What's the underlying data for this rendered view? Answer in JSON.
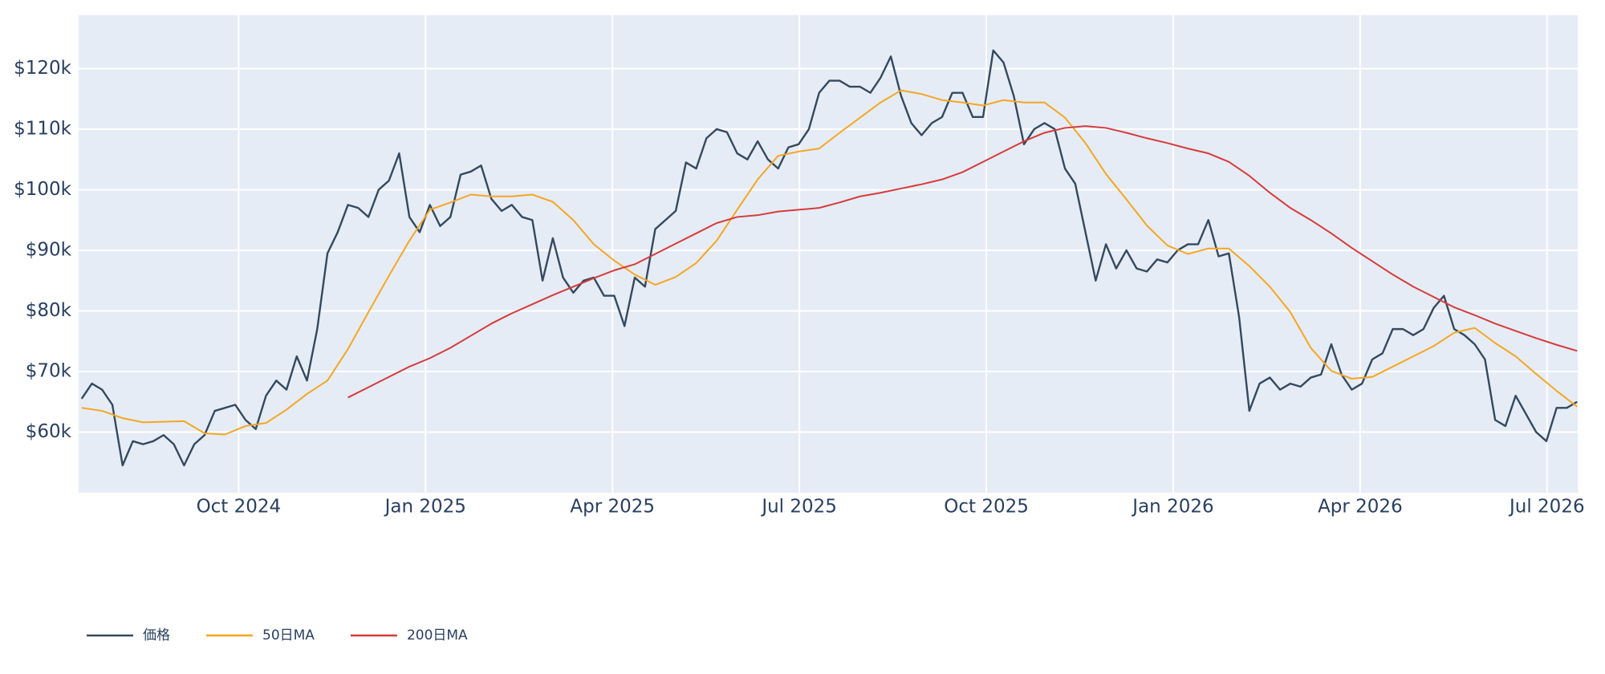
{
  "chart_data": {
    "type": "line",
    "xlim": [
      2024.536,
      2026.541
    ],
    "ylim": [
      50000,
      128800
    ],
    "grid": true,
    "legend": "bottom-left",
    "background": "#e5ecf6",
    "xticks": [
      {
        "value": 2024.75,
        "label": "Oct 2024"
      },
      {
        "value": 2025.0,
        "label": "Jan 2025"
      },
      {
        "value": 2025.25,
        "label": "Apr 2025"
      },
      {
        "value": 2025.5,
        "label": "Jul 2025"
      },
      {
        "value": 2025.75,
        "label": "Oct 2025"
      },
      {
        "value": 2026.0,
        "label": "Jan 2026"
      },
      {
        "value": 2026.25,
        "label": "Apr 2026"
      },
      {
        "value": 2026.5,
        "label": "Jul 2026"
      }
    ],
    "yticks": [
      {
        "value": 60000,
        "label": "$60k"
      },
      {
        "value": 70000,
        "label": "$70k"
      },
      {
        "value": 80000,
        "label": "$80k"
      },
      {
        "value": 90000,
        "label": "$90k"
      },
      {
        "value": 100000,
        "label": "$100k"
      },
      {
        "value": 110000,
        "label": "$110k"
      },
      {
        "value": 120000,
        "label": "$120k"
      }
    ],
    "series": [
      {
        "name": "価格",
        "color": "#34495e",
        "x": [
          2024.54,
          2024.5537,
          2024.5674,
          2024.5811,
          2024.5948,
          2024.6085,
          2024.6222,
          2024.6359,
          2024.6496,
          2024.6633,
          2024.677,
          2024.6907,
          2024.7044,
          2024.7181,
          2024.7318,
          2024.7455,
          2024.7592,
          2024.7729,
          2024.7866,
          2024.8003,
          2024.814,
          2024.8277,
          2024.8414,
          2024.8551,
          2024.8688,
          2024.8825,
          2024.8962,
          2024.9099,
          2024.9236,
          2024.9373,
          2024.951,
          2024.9647,
          2024.9784,
          2024.9921,
          2025.0058,
          2025.0195,
          2025.0332,
          2025.0469,
          2025.0606,
          2025.0743,
          2025.088,
          2025.1017,
          2025.1154,
          2025.1291,
          2025.1428,
          2025.1565,
          2025.1702,
          2025.1839,
          2025.1976,
          2025.2113,
          2025.225,
          2025.2387,
          2025.2524,
          2025.2661,
          2025.2798,
          2025.2935,
          2025.3072,
          2025.3209,
          2025.3346,
          2025.3483,
          2025.362,
          2025.3757,
          2025.3894,
          2025.4031,
          2025.4168,
          2025.4305,
          2025.4442,
          2025.4579,
          2025.4716,
          2025.4853,
          2025.499,
          2025.5127,
          2025.5264,
          2025.5401,
          2025.5538,
          2025.5675,
          2025.5812,
          2025.5949,
          2025.6086,
          2025.6223,
          2025.636,
          2025.6497,
          2025.6634,
          2025.6771,
          2025.6908,
          2025.7045,
          2025.7182,
          2025.7319,
          2025.7456,
          2025.7593,
          2025.773,
          2025.7867,
          2025.8004,
          2025.8141,
          2025.8278,
          2025.8415,
          2025.8552,
          2025.8689,
          2025.8826,
          2025.8963,
          2025.91,
          2025.9237,
          2025.9374,
          2025.9511,
          2025.9648,
          2025.9785,
          2025.9922,
          2026.0059,
          2026.0196,
          2026.0333,
          2026.047,
          2026.0607,
          2026.0744,
          2026.0881,
          2026.1018,
          2026.1155,
          2026.1292,
          2026.1429,
          2026.1566,
          2026.1703,
          2026.184,
          2026.1977,
          2026.2114,
          2026.2251,
          2026.2388,
          2026.2525,
          2026.2662,
          2026.2799,
          2026.2936,
          2026.3073,
          2026.321,
          2026.3347,
          2026.3484,
          2026.3621,
          2026.3758,
          2026.3895,
          2026.4032,
          2026.4169,
          2026.4306,
          2026.4443,
          2026.458,
          2026.4717,
          2026.4854,
          2026.4991,
          2026.5128,
          2026.5265,
          2026.5402
        ],
        "values": [
          65500,
          68000,
          67000,
          64500,
          54500,
          58500,
          58000,
          58500,
          59500,
          58000,
          54500,
          58000,
          59500,
          63500,
          64000,
          64500,
          62000,
          60500,
          66000,
          68500,
          67000,
          72500,
          68500,
          77000,
          89500,
          93000,
          97500,
          97000,
          95500,
          100000,
          101500,
          106000,
          95500,
          93000,
          97500,
          94000,
          95500,
          102500,
          103000,
          104000,
          98500,
          96500,
          97500,
          95500,
          95000,
          85000,
          92000,
          85500,
          83000,
          85000,
          85500,
          82500,
          82500,
          77500,
          85500,
          84000,
          93500,
          95000,
          96500,
          104500,
          103500,
          108500,
          110000,
          109500,
          106000,
          105000,
          108000,
          105000,
          103500,
          107000,
          107500,
          110000,
          116000,
          118000,
          118000,
          117000,
          117000,
          116000,
          118500,
          122000,
          115500,
          111000,
          109000,
          111000,
          112000,
          116000,
          116000,
          112000,
          112000,
          123000,
          121000,
          115500,
          107500,
          110000,
          111000,
          110000,
          103500,
          101000,
          93000,
          85000,
          91000,
          87000,
          90000,
          87000,
          86500,
          88500,
          88000,
          90000,
          91000,
          91000,
          95000,
          89000,
          89500,
          79000,
          63500,
          68000,
          69000,
          67000,
          68000,
          67500,
          69000,
          69500,
          74500,
          69500,
          67000,
          68000,
          72000,
          73000,
          77000,
          77000,
          76000,
          77000,
          80500,
          82500,
          77000,
          76000,
          74500,
          72000,
          62000,
          61000,
          66000,
          63000,
          60000,
          58500,
          64000,
          64000,
          65000
        ]
      },
      {
        "name": "50日MA",
        "color": "#f5a623",
        "x": [
          2024.54,
          2024.5674,
          2024.5948,
          2024.6222,
          2024.6496,
          2024.677,
          2024.7044,
          2024.7318,
          2024.7592,
          2024.7866,
          2024.814,
          2024.8414,
          2024.8688,
          2024.8962,
          2024.9236,
          2024.951,
          2024.9784,
          2025.0058,
          2025.0332,
          2025.0606,
          2025.088,
          2025.1154,
          2025.1428,
          2025.1702,
          2025.1976,
          2025.225,
          2025.2524,
          2025.2798,
          2025.3072,
          2025.3346,
          2025.362,
          2025.3894,
          2025.4168,
          2025.4442,
          2025.4716,
          2025.499,
          2025.5264,
          2025.5538,
          2025.5812,
          2025.6086,
          2025.636,
          2025.6634,
          2025.6908,
          2025.7182,
          2025.7456,
          2025.773,
          2025.8004,
          2025.8278,
          2025.8552,
          2025.8826,
          2025.91,
          2025.9374,
          2025.9648,
          2025.9922,
          2026.0196,
          2026.047,
          2026.0744,
          2026.1018,
          2026.1292,
          2026.1566,
          2026.184,
          2026.2114,
          2026.2388,
          2026.2662,
          2026.2936,
          2026.321,
          2026.3484,
          2026.3758,
          2026.4032,
          2026.4306,
          2026.458,
          2026.4854,
          2026.5128,
          2026.5402
        ],
        "values": [
          64000,
          63500,
          62300,
          61600,
          61700,
          61800,
          59800,
          59600,
          61000,
          61500,
          63700,
          66300,
          68500,
          73700,
          79800,
          85800,
          91600,
          96700,
          97900,
          99200,
          98900,
          98900,
          99200,
          98000,
          95000,
          91000,
          88300,
          86000,
          84300,
          85600,
          87900,
          91600,
          96700,
          101700,
          105600,
          106300,
          106800,
          109400,
          111900,
          114400,
          116400,
          115800,
          114800,
          114400,
          113900,
          114800,
          114400,
          114400,
          111900,
          107700,
          102600,
          98400,
          94100,
          90800,
          89400,
          90300,
          90300,
          87400,
          84000,
          79800,
          73900,
          70100,
          68800,
          69100,
          70800,
          72500,
          74200,
          76400,
          77200,
          74700,
          72500,
          69600,
          66800,
          64200
        ]
      },
      {
        "name": "200日MA",
        "color": "#d63b3b",
        "x": [
          2024.8962,
          2024.9236,
          2024.951,
          2024.9784,
          2025.0058,
          2025.0332,
          2025.0606,
          2025.088,
          2025.1154,
          2025.1428,
          2025.1702,
          2025.1976,
          2025.225,
          2025.2524,
          2025.2798,
          2025.3072,
          2025.3346,
          2025.362,
          2025.3894,
          2025.4168,
          2025.4442,
          2025.4716,
          2025.499,
          2025.5264,
          2025.5538,
          2025.5812,
          2025.6086,
          2025.636,
          2025.6634,
          2025.6908,
          2025.7182,
          2025.7456,
          2025.773,
          2025.8004,
          2025.8278,
          2025.8552,
          2025.8826,
          2025.91,
          2025.9374,
          2025.9648,
          2025.9922,
          2026.0196,
          2026.047,
          2026.0744,
          2026.1018,
          2026.1292,
          2026.1566,
          2026.184,
          2026.2114,
          2026.2388,
          2026.2662,
          2026.2936,
          2026.321,
          2026.3484,
          2026.3758,
          2026.4032,
          2026.4306,
          2026.458,
          2026.4854,
          2026.5128,
          2026.5402
        ],
        "values": [
          65700,
          67400,
          69100,
          70800,
          72200,
          73900,
          75900,
          77900,
          79600,
          81100,
          82600,
          84000,
          85400,
          86700,
          87700,
          89400,
          91100,
          92800,
          94500,
          95500,
          95800,
          96400,
          96700,
          97000,
          97900,
          98900,
          99500,
          100200,
          100900,
          101700,
          102900,
          104600,
          106300,
          108000,
          109400,
          110200,
          110500,
          110200,
          109400,
          108500,
          107700,
          106800,
          106000,
          104600,
          102300,
          99500,
          97000,
          95000,
          92800,
          90400,
          88200,
          86000,
          84000,
          82300,
          80600,
          79300,
          77900,
          76700,
          75500,
          74400,
          73400
        ]
      }
    ]
  }
}
